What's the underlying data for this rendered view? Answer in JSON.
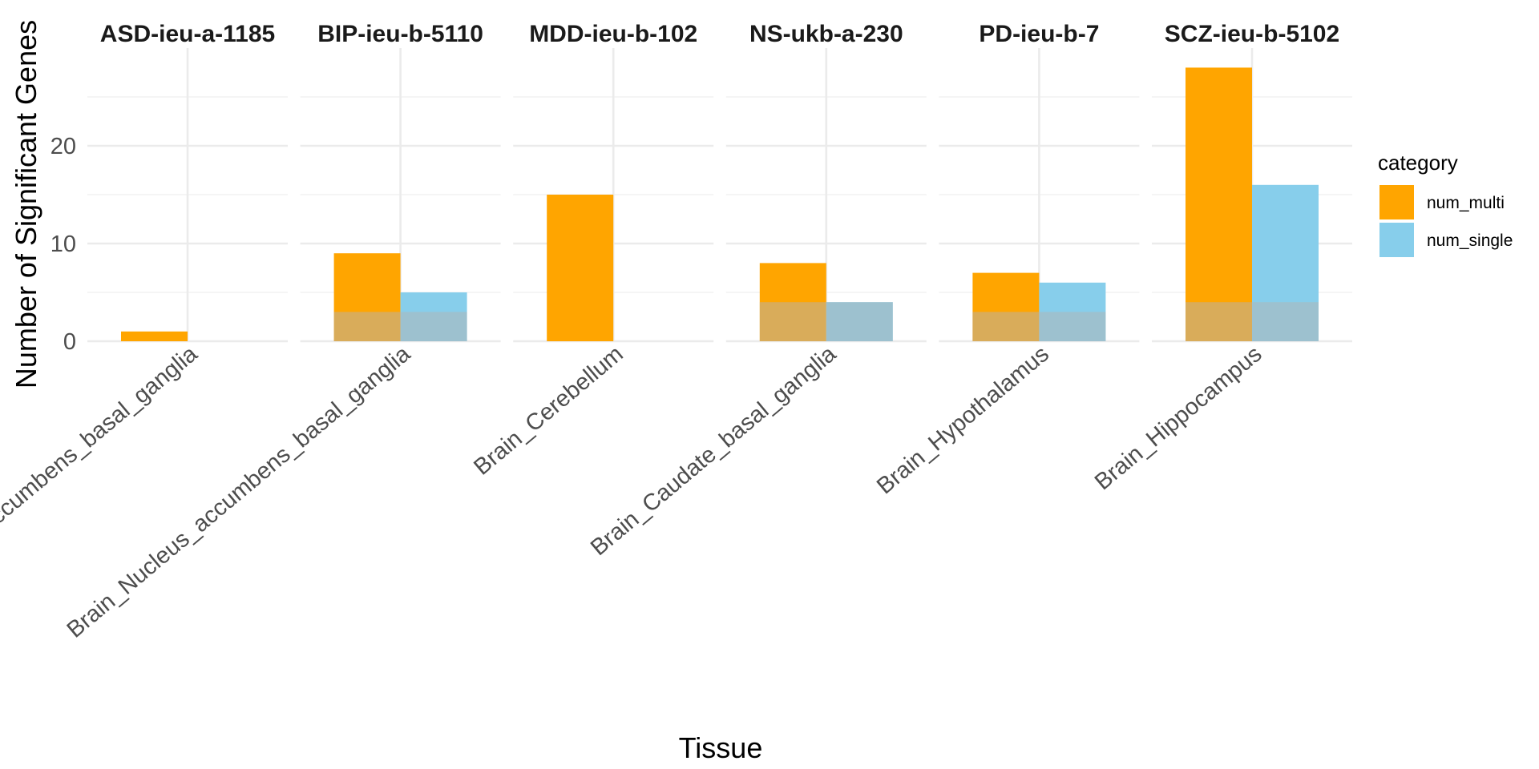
{
  "chart_data": {
    "type": "bar",
    "ylabel": "Number of Significant Genes",
    "xlabel": "Tissue",
    "ylim": [
      0,
      28
    ],
    "yticks": [
      0,
      10,
      20
    ],
    "legend": {
      "title": "category",
      "position": "right",
      "entries": [
        {
          "name": "num_multi",
          "color": "#FFA500"
        },
        {
          "name": "num_single",
          "color": "#87CEEB"
        }
      ]
    },
    "overlay": {
      "value": 3.5,
      "color": "#b4b4b4",
      "opacity": 0.5
    },
    "facets": [
      {
        "title": "ASD-ieu-a-1185",
        "tissue": "Brain_Nucleus_accumbens_basal_ganglia",
        "num_multi": 1,
        "num_single": 0,
        "overlay": 0
      },
      {
        "title": "BIP-ieu-b-5110",
        "tissue": "Brain_Nucleus_accumbens_basal_ganglia",
        "num_multi": 9,
        "num_single": 5,
        "overlay": 3
      },
      {
        "title": "MDD-ieu-b-102",
        "tissue": "Brain_Cerebellum",
        "num_multi": 15,
        "num_single": 0,
        "overlay": 0
      },
      {
        "title": "NS-ukb-a-230",
        "tissue": "Brain_Caudate_basal_ganglia",
        "num_multi": 8,
        "num_single": 4,
        "overlay": 4
      },
      {
        "title": "PD-ieu-b-7",
        "tissue": "Brain_Hypothalamus",
        "num_multi": 7,
        "num_single": 6,
        "overlay": 3
      },
      {
        "title": "SCZ-ieu-b-5102",
        "tissue": "Brain_Hippocampus",
        "num_multi": 28,
        "num_single": 16,
        "overlay": 4
      }
    ]
  }
}
